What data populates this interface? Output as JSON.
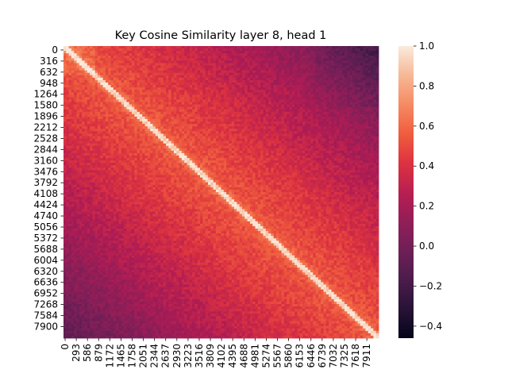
{
  "chart_data": {
    "type": "heatmap",
    "title": "Key Cosine Similarity layer 8, head 1",
    "xlabel": "",
    "ylabel": "",
    "y_ticks": [
      "0",
      "316",
      "632",
      "948",
      "1264",
      "1580",
      "1896",
      "2212",
      "2528",
      "2844",
      "3160",
      "3476",
      "3792",
      "4108",
      "4424",
      "4740",
      "5056",
      "5372",
      "5688",
      "6004",
      "6320",
      "6636",
      "6952",
      "7268",
      "7584",
      "7900"
    ],
    "x_ticks": [
      "0",
      "293",
      "586",
      "879",
      "1172",
      "1465",
      "1758",
      "2051",
      "2344",
      "2637",
      "2930",
      "3223",
      "3516",
      "3809",
      "4102",
      "4395",
      "4688",
      "4981",
      "5274",
      "5567",
      "5860",
      "6153",
      "6446",
      "6739",
      "7032",
      "7325",
      "7618",
      "7911"
    ],
    "x_range": [
      0,
      8163
    ],
    "y_range": [
      0,
      8163
    ],
    "colorbar": {
      "colormap": "rocket",
      "vmin": -0.46,
      "vmax": 1.0,
      "ticks": [
        "−0.4",
        "−0.2",
        "0.0",
        "0.2",
        "0.4",
        "0.6",
        "0.8",
        "1.0"
      ],
      "tick_values": [
        -0.4,
        -0.2,
        0.0,
        0.2,
        0.4,
        0.6,
        0.8,
        1.0
      ]
    },
    "pattern": {
      "diagonal_value": 1.0,
      "near_diagonal_value": 0.55,
      "far_corner_value": -0.05,
      "upper_right_corner_value": 0.0
    }
  }
}
